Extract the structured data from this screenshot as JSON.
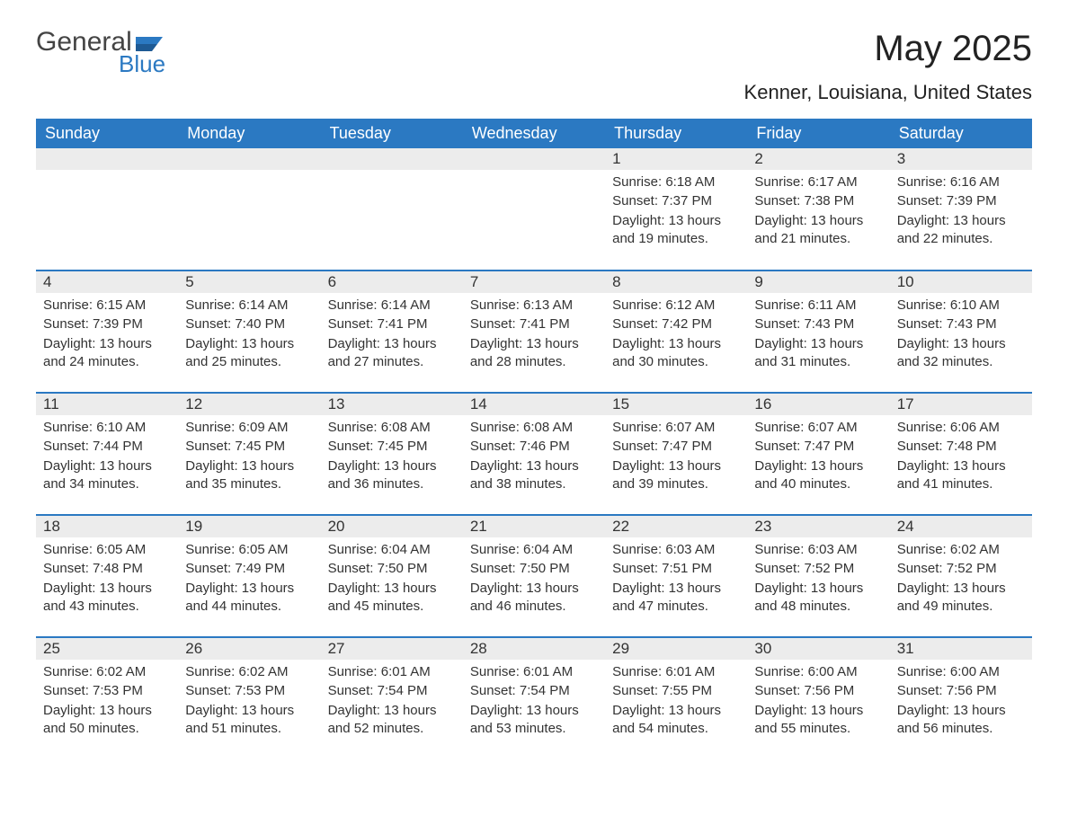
{
  "logo": {
    "text1": "General",
    "text2": "Blue",
    "flag_color": "#2b79c2"
  },
  "title": "May 2025",
  "subtitle": "Kenner, Louisiana, United States",
  "colors": {
    "header_bg": "#2b79c2",
    "header_text": "#ffffff",
    "daynum_bg": "#ececec",
    "body_text": "#333333",
    "row_border": "#2b79c2",
    "page_bg": "#ffffff"
  },
  "fonts": {
    "title_size": 40,
    "subtitle_size": 22,
    "header_size": 18,
    "daynum_size": 17,
    "body_size": 15
  },
  "weekdays": [
    "Sunday",
    "Monday",
    "Tuesday",
    "Wednesday",
    "Thursday",
    "Friday",
    "Saturday"
  ],
  "weeks": [
    [
      null,
      null,
      null,
      null,
      {
        "day": "1",
        "sunrise": "Sunrise: 6:18 AM",
        "sunset": "Sunset: 7:37 PM",
        "daylight": "Daylight: 13 hours and 19 minutes."
      },
      {
        "day": "2",
        "sunrise": "Sunrise: 6:17 AM",
        "sunset": "Sunset: 7:38 PM",
        "daylight": "Daylight: 13 hours and 21 minutes."
      },
      {
        "day": "3",
        "sunrise": "Sunrise: 6:16 AM",
        "sunset": "Sunset: 7:39 PM",
        "daylight": "Daylight: 13 hours and 22 minutes."
      }
    ],
    [
      {
        "day": "4",
        "sunrise": "Sunrise: 6:15 AM",
        "sunset": "Sunset: 7:39 PM",
        "daylight": "Daylight: 13 hours and 24 minutes."
      },
      {
        "day": "5",
        "sunrise": "Sunrise: 6:14 AM",
        "sunset": "Sunset: 7:40 PM",
        "daylight": "Daylight: 13 hours and 25 minutes."
      },
      {
        "day": "6",
        "sunrise": "Sunrise: 6:14 AM",
        "sunset": "Sunset: 7:41 PM",
        "daylight": "Daylight: 13 hours and 27 minutes."
      },
      {
        "day": "7",
        "sunrise": "Sunrise: 6:13 AM",
        "sunset": "Sunset: 7:41 PM",
        "daylight": "Daylight: 13 hours and 28 minutes."
      },
      {
        "day": "8",
        "sunrise": "Sunrise: 6:12 AM",
        "sunset": "Sunset: 7:42 PM",
        "daylight": "Daylight: 13 hours and 30 minutes."
      },
      {
        "day": "9",
        "sunrise": "Sunrise: 6:11 AM",
        "sunset": "Sunset: 7:43 PM",
        "daylight": "Daylight: 13 hours and 31 minutes."
      },
      {
        "day": "10",
        "sunrise": "Sunrise: 6:10 AM",
        "sunset": "Sunset: 7:43 PM",
        "daylight": "Daylight: 13 hours and 32 minutes."
      }
    ],
    [
      {
        "day": "11",
        "sunrise": "Sunrise: 6:10 AM",
        "sunset": "Sunset: 7:44 PM",
        "daylight": "Daylight: 13 hours and 34 minutes."
      },
      {
        "day": "12",
        "sunrise": "Sunrise: 6:09 AM",
        "sunset": "Sunset: 7:45 PM",
        "daylight": "Daylight: 13 hours and 35 minutes."
      },
      {
        "day": "13",
        "sunrise": "Sunrise: 6:08 AM",
        "sunset": "Sunset: 7:45 PM",
        "daylight": "Daylight: 13 hours and 36 minutes."
      },
      {
        "day": "14",
        "sunrise": "Sunrise: 6:08 AM",
        "sunset": "Sunset: 7:46 PM",
        "daylight": "Daylight: 13 hours and 38 minutes."
      },
      {
        "day": "15",
        "sunrise": "Sunrise: 6:07 AM",
        "sunset": "Sunset: 7:47 PM",
        "daylight": "Daylight: 13 hours and 39 minutes."
      },
      {
        "day": "16",
        "sunrise": "Sunrise: 6:07 AM",
        "sunset": "Sunset: 7:47 PM",
        "daylight": "Daylight: 13 hours and 40 minutes."
      },
      {
        "day": "17",
        "sunrise": "Sunrise: 6:06 AM",
        "sunset": "Sunset: 7:48 PM",
        "daylight": "Daylight: 13 hours and 41 minutes."
      }
    ],
    [
      {
        "day": "18",
        "sunrise": "Sunrise: 6:05 AM",
        "sunset": "Sunset: 7:48 PM",
        "daylight": "Daylight: 13 hours and 43 minutes."
      },
      {
        "day": "19",
        "sunrise": "Sunrise: 6:05 AM",
        "sunset": "Sunset: 7:49 PM",
        "daylight": "Daylight: 13 hours and 44 minutes."
      },
      {
        "day": "20",
        "sunrise": "Sunrise: 6:04 AM",
        "sunset": "Sunset: 7:50 PM",
        "daylight": "Daylight: 13 hours and 45 minutes."
      },
      {
        "day": "21",
        "sunrise": "Sunrise: 6:04 AM",
        "sunset": "Sunset: 7:50 PM",
        "daylight": "Daylight: 13 hours and 46 minutes."
      },
      {
        "day": "22",
        "sunrise": "Sunrise: 6:03 AM",
        "sunset": "Sunset: 7:51 PM",
        "daylight": "Daylight: 13 hours and 47 minutes."
      },
      {
        "day": "23",
        "sunrise": "Sunrise: 6:03 AM",
        "sunset": "Sunset: 7:52 PM",
        "daylight": "Daylight: 13 hours and 48 minutes."
      },
      {
        "day": "24",
        "sunrise": "Sunrise: 6:02 AM",
        "sunset": "Sunset: 7:52 PM",
        "daylight": "Daylight: 13 hours and 49 minutes."
      }
    ],
    [
      {
        "day": "25",
        "sunrise": "Sunrise: 6:02 AM",
        "sunset": "Sunset: 7:53 PM",
        "daylight": "Daylight: 13 hours and 50 minutes."
      },
      {
        "day": "26",
        "sunrise": "Sunrise: 6:02 AM",
        "sunset": "Sunset: 7:53 PM",
        "daylight": "Daylight: 13 hours and 51 minutes."
      },
      {
        "day": "27",
        "sunrise": "Sunrise: 6:01 AM",
        "sunset": "Sunset: 7:54 PM",
        "daylight": "Daylight: 13 hours and 52 minutes."
      },
      {
        "day": "28",
        "sunrise": "Sunrise: 6:01 AM",
        "sunset": "Sunset: 7:54 PM",
        "daylight": "Daylight: 13 hours and 53 minutes."
      },
      {
        "day": "29",
        "sunrise": "Sunrise: 6:01 AM",
        "sunset": "Sunset: 7:55 PM",
        "daylight": "Daylight: 13 hours and 54 minutes."
      },
      {
        "day": "30",
        "sunrise": "Sunrise: 6:00 AM",
        "sunset": "Sunset: 7:56 PM",
        "daylight": "Daylight: 13 hours and 55 minutes."
      },
      {
        "day": "31",
        "sunrise": "Sunrise: 6:00 AM",
        "sunset": "Sunset: 7:56 PM",
        "daylight": "Daylight: 13 hours and 56 minutes."
      }
    ]
  ]
}
